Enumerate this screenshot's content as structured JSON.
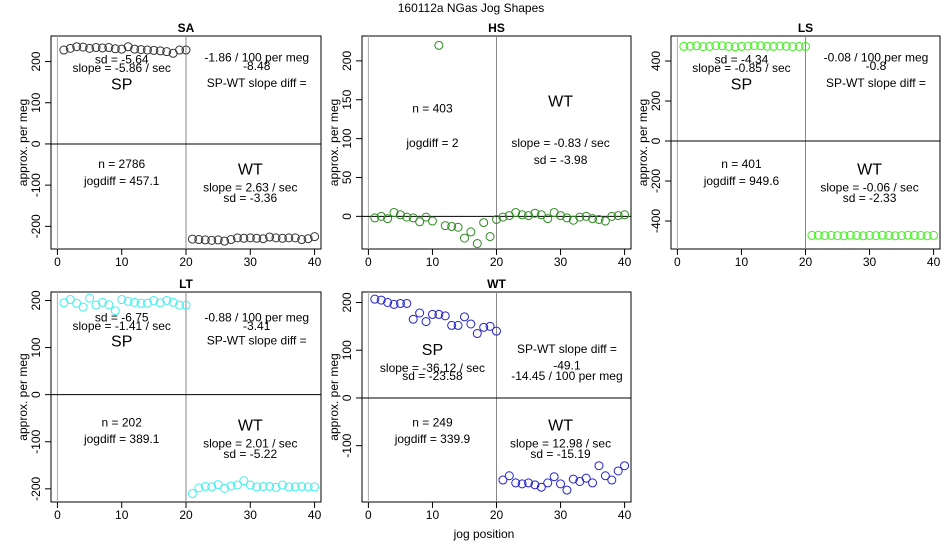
{
  "figure": {
    "title": "160112a   NGas Jog Shapes",
    "xlabel": "jog position"
  },
  "chart_data": [
    {
      "type": "scatter",
      "title": "SA",
      "ylabel": "approx. per meg",
      "color": "#333333",
      "xlim": [
        -1,
        41
      ],
      "ylim": [
        -255,
        262
      ],
      "xticks": [
        0,
        10,
        20,
        30,
        40
      ],
      "yticks": [
        -200,
        -100,
        0,
        100,
        200
      ],
      "x": [
        1,
        2,
        3,
        4,
        5,
        6,
        7,
        8,
        9,
        10,
        11,
        12,
        13,
        14,
        15,
        16,
        17,
        18,
        19,
        20,
        21,
        22,
        23,
        24,
        25,
        26,
        27,
        28,
        29,
        30,
        31,
        32,
        33,
        34,
        35,
        36,
        37,
        38,
        39,
        40
      ],
      "y": [
        228,
        232,
        236,
        235,
        232,
        234,
        233,
        234,
        231,
        230,
        236,
        230,
        229,
        228,
        227,
        226,
        224,
        220,
        228,
        228,
        -231,
        -232,
        -233,
        -234,
        -233,
        -236,
        -232,
        -228,
        -229,
        -228,
        -229,
        -230,
        -226,
        -228,
        -229,
        -228,
        -228,
        -232,
        -230,
        -225
      ],
      "labels": {
        "sp": "SP",
        "sp_slope": "slope = -5.86 / sec",
        "sp_sd": "sd = -5.64",
        "diff_title": "SP-WT slope diff =",
        "diff_value": "-8.48",
        "diff_norm": "-1.86 / 100 per meg",
        "n": "n = 2786",
        "jogdiff": "jogdiff = 457.1",
        "wt": "WT",
        "wt_slope": "slope = 2.63 / sec",
        "wt_sd": "sd = -3.36"
      }
    },
    {
      "type": "scatter",
      "title": "HS",
      "ylabel": "approx. per meg",
      "color": "#2e8b22",
      "xlim": [
        -1,
        41
      ],
      "ylim": [
        -42,
        232
      ],
      "xticks": [
        0,
        10,
        20,
        30,
        40
      ],
      "yticks": [
        0,
        50,
        100,
        150,
        200
      ],
      "x": [
        1,
        2,
        3,
        4,
        5,
        6,
        7,
        8,
        9,
        10,
        11,
        12,
        13,
        14,
        15,
        16,
        17,
        18,
        19,
        20,
        21,
        22,
        23,
        24,
        25,
        26,
        27,
        28,
        29,
        30,
        31,
        32,
        33,
        34,
        35,
        36,
        37,
        38,
        39,
        40
      ],
      "y": [
        -2,
        0,
        -3,
        5,
        2,
        -1,
        -2,
        -7,
        -1,
        -6,
        220,
        -12,
        -13,
        -14,
        -28,
        -20,
        -35,
        -8,
        -26,
        -4,
        -1,
        1,
        5,
        2,
        1,
        4,
        2,
        -3,
        5,
        1,
        -2,
        -5,
        -1,
        0,
        -3,
        -4,
        -6,
        0,
        1,
        2
      ],
      "labels": {
        "sp": "",
        "sp_slope": "",
        "sp_sd": "",
        "diff_title": "",
        "diff_value": "",
        "diff_norm": "",
        "n": "n = 403",
        "jogdiff": "jogdiff = 2",
        "wt": "WT",
        "wt_slope": "slope = -0.83 / sec",
        "wt_sd": "sd = -3.98"
      }
    },
    {
      "type": "scatter",
      "title": "LS",
      "ylabel": "approx. per meg",
      "color": "#44ee22",
      "xlim": [
        -1,
        41
      ],
      "ylim": [
        -540,
        525
      ],
      "xticks": [
        0,
        10,
        20,
        30,
        40
      ],
      "yticks": [
        -400,
        -200,
        0,
        200,
        400
      ],
      "x": [
        1,
        2,
        3,
        4,
        5,
        6,
        7,
        8,
        9,
        10,
        11,
        12,
        13,
        14,
        15,
        16,
        17,
        18,
        19,
        20,
        21,
        22,
        23,
        24,
        25,
        26,
        27,
        28,
        29,
        30,
        31,
        32,
        33,
        34,
        35,
        36,
        37,
        38,
        39,
        40
      ],
      "y": [
        473,
        474,
        476,
        472,
        473,
        477,
        476,
        473,
        471,
        473,
        475,
        477,
        476,
        474,
        473,
        475,
        474,
        472,
        473,
        473,
        -472,
        -471,
        -473,
        -472,
        -473,
        -474,
        -471,
        -472,
        -474,
        -472,
        -473,
        -471,
        -472,
        -474,
        -473,
        -471,
        -472,
        -472,
        -474,
        -472
      ],
      "labels": {
        "sp": "SP",
        "sp_slope": "slope = -0.85 / sec",
        "sp_sd": "sd = -4.34",
        "diff_title": "SP-WT slope diff =",
        "diff_value": "-0.8",
        "diff_norm": "-0.08 / 100 per meg",
        "n": "n = 401",
        "jogdiff": "jogdiff = 949.6",
        "wt": "WT",
        "wt_slope": "slope = -0.06 / sec",
        "wt_sd": "sd = -2.33"
      }
    },
    {
      "type": "scatter",
      "title": "LT",
      "ylabel": "approx. per meg",
      "color": "#44eeee",
      "xlim": [
        -1,
        41
      ],
      "ylim": [
        -228,
        218
      ],
      "xticks": [
        0,
        10,
        20,
        30,
        40
      ],
      "yticks": [
        -200,
        -100,
        0,
        100,
        200
      ],
      "x": [
        1,
        2,
        3,
        4,
        5,
        6,
        7,
        8,
        9,
        10,
        11,
        12,
        13,
        14,
        15,
        16,
        17,
        18,
        19,
        20,
        21,
        22,
        23,
        24,
        25,
        26,
        27,
        28,
        29,
        30,
        31,
        32,
        33,
        34,
        35,
        36,
        37,
        38,
        39,
        40
      ],
      "y": [
        195,
        202,
        194,
        186,
        205,
        190,
        196,
        191,
        178,
        202,
        198,
        196,
        194,
        194,
        200,
        195,
        200,
        196,
        190,
        190,
        -210,
        -198,
        -195,
        -196,
        -191,
        -199,
        -194,
        -192,
        -183,
        -192,
        -196,
        -195,
        -195,
        -197,
        -192,
        -196,
        -196,
        -195,
        -196,
        -196
      ],
      "labels": {
        "sp": "SP",
        "sp_slope": "slope = -1.41 / sec",
        "sp_sd": "sd = -6.75",
        "diff_title": "SP-WT slope diff =",
        "diff_value": "-3.41",
        "diff_norm": "-0.88 / 100 per meg",
        "n": "n = 202",
        "jogdiff": "jogdiff = 389.1",
        "wt": "WT",
        "wt_slope": "slope = 2.01 / sec",
        "wt_sd": "sd = -5.22"
      }
    },
    {
      "type": "scatter",
      "title": "WT",
      "ylabel": "approx. per meg",
      "color": "#2222cc",
      "xlim": [
        -1,
        41
      ],
      "ylim": [
        -218,
        222
      ],
      "xticks": [
        0,
        10,
        20,
        30,
        40
      ],
      "yticks": [
        -100,
        0,
        100,
        200
      ],
      "x": [
        1,
        2,
        3,
        4,
        5,
        6,
        7,
        8,
        9,
        10,
        11,
        12,
        13,
        14,
        15,
        16,
        17,
        18,
        19,
        20,
        21,
        22,
        23,
        24,
        25,
        26,
        27,
        28,
        29,
        30,
        31,
        32,
        33,
        34,
        35,
        36,
        37,
        38,
        39,
        40
      ],
      "y": [
        207,
        205,
        200,
        196,
        198,
        198,
        165,
        178,
        160,
        175,
        175,
        172,
        152,
        152,
        170,
        155,
        135,
        148,
        150,
        140,
        -172,
        -163,
        -178,
        -180,
        -178,
        -182,
        -187,
        -178,
        -165,
        -180,
        -193,
        -170,
        -175,
        -168,
        -178,
        -142,
        -163,
        -172,
        -153,
        -142
      ],
      "labels": {
        "sp": "SP",
        "sp_slope": "slope = -36.12 / sec",
        "sp_sd": "sd = -23.58",
        "diff_title": "SP-WT slope diff =",
        "diff_value": "-49.1",
        "diff_norm": "-14.45 / 100 per meg",
        "n": "n = 249",
        "jogdiff": "jogdiff = 339.9",
        "wt": "WT",
        "wt_slope": "slope = 12.98 / sec",
        "wt_sd": "sd = -15.19"
      }
    }
  ]
}
